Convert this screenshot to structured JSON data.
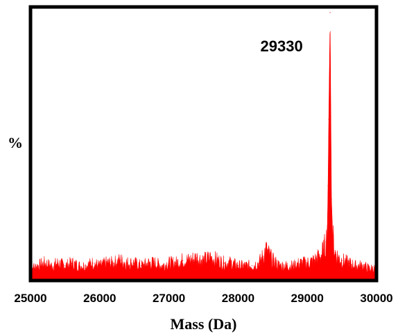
{
  "chart_data": {
    "type": "area",
    "title": "",
    "xlabel": "Mass (Da)",
    "ylabel": "%",
    "xlim": [
      25000,
      30000
    ],
    "ylim": [
      0,
      100
    ],
    "x_ticks": [
      25000,
      26000,
      27000,
      28000,
      29000,
      30000
    ],
    "x_tick_labels": [
      "25000",
      "26000",
      "27000",
      "28000",
      "29000",
      "30000"
    ],
    "grid": false,
    "series": [
      {
        "color": "#ff0000",
        "x": [
          25000,
          25100,
          25200,
          25300,
          25400,
          25500,
          25600,
          25700,
          25800,
          25900,
          26000,
          26100,
          26200,
          26300,
          26400,
          26500,
          26600,
          26700,
          26800,
          26900,
          27000,
          27100,
          27200,
          27300,
          27400,
          27500,
          27600,
          27700,
          27800,
          27900,
          28000,
          28100,
          28200,
          28300,
          28350,
          28400,
          28450,
          28500,
          28600,
          28700,
          28800,
          28900,
          29000,
          29100,
          29150,
          29200,
          29240,
          29270,
          29290,
          29300,
          29310,
          29330,
          29350,
          29370,
          29400,
          29450,
          29500,
          29600,
          29700,
          29800,
          29900,
          30000
        ],
        "y": [
          4,
          5,
          6,
          5,
          6,
          5,
          6,
          5,
          5,
          6,
          5,
          6,
          6,
          7,
          6,
          6,
          5,
          6,
          6,
          5,
          6,
          6,
          7,
          7,
          8,
          7,
          8,
          7,
          6,
          6,
          5,
          5,
          5,
          6,
          8,
          11,
          9,
          7,
          5,
          5,
          5,
          6,
          6,
          7,
          8,
          9,
          11,
          14,
          20,
          35,
          60,
          100,
          30,
          15,
          10,
          8,
          7,
          6,
          5,
          5,
          4,
          4
        ]
      }
    ],
    "annotations": [
      {
        "text": "29330",
        "x": 29330
      }
    ]
  }
}
